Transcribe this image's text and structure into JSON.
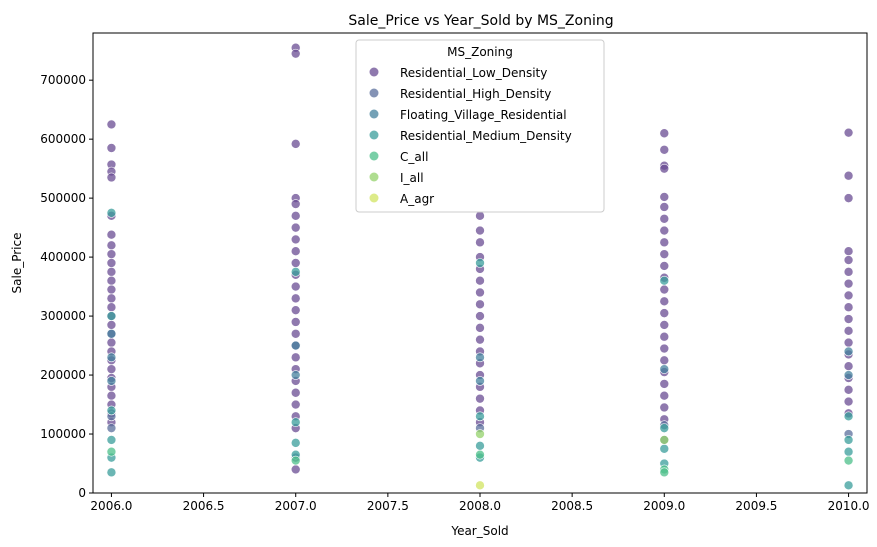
{
  "chart_data": {
    "type": "scatter",
    "title": "Sale_Price vs Year_Sold by MS_Zoning",
    "xlabel": "Year_Sold",
    "ylabel": "Sale_Price",
    "xlim": [
      2005.9,
      2010.1
    ],
    "ylim": [
      0,
      780000
    ],
    "xticks": [
      "2006.0",
      "2006.5",
      "2007.0",
      "2007.5",
      "2008.0",
      "2008.5",
      "2009.0",
      "2009.5",
      "2010.0"
    ],
    "yticks": [
      "0",
      "100000",
      "200000",
      "300000",
      "400000",
      "500000",
      "600000",
      "700000"
    ],
    "legend": {
      "title": "MS_Zoning",
      "position": "top-center"
    },
    "grid": false,
    "series": [
      {
        "name": "Residential_Low_Density",
        "color": "#6a4c93",
        "points": [
          [
            2006,
            625000
          ],
          [
            2006,
            585000
          ],
          [
            2006,
            557000
          ],
          [
            2006,
            545000
          ],
          [
            2006,
            535000
          ],
          [
            2006,
            470000
          ],
          [
            2006,
            438000
          ],
          [
            2006,
            420000
          ],
          [
            2006,
            405000
          ],
          [
            2006,
            390000
          ],
          [
            2006,
            375000
          ],
          [
            2006,
            360000
          ],
          [
            2006,
            345000
          ],
          [
            2006,
            330000
          ],
          [
            2006,
            315000
          ],
          [
            2006,
            300000
          ],
          [
            2006,
            285000
          ],
          [
            2006,
            270000
          ],
          [
            2006,
            255000
          ],
          [
            2006,
            240000
          ],
          [
            2006,
            225000
          ],
          [
            2006,
            210000
          ],
          [
            2006,
            195000
          ],
          [
            2006,
            180000
          ],
          [
            2006,
            165000
          ],
          [
            2006,
            150000
          ],
          [
            2006,
            135000
          ],
          [
            2006,
            120000
          ],
          [
            2007,
            755000
          ],
          [
            2007,
            745000
          ],
          [
            2007,
            592000
          ],
          [
            2007,
            500000
          ],
          [
            2007,
            490000
          ],
          [
            2007,
            470000
          ],
          [
            2007,
            450000
          ],
          [
            2007,
            430000
          ],
          [
            2007,
            410000
          ],
          [
            2007,
            390000
          ],
          [
            2007,
            370000
          ],
          [
            2007,
            350000
          ],
          [
            2007,
            330000
          ],
          [
            2007,
            310000
          ],
          [
            2007,
            290000
          ],
          [
            2007,
            270000
          ],
          [
            2007,
            250000
          ],
          [
            2007,
            230000
          ],
          [
            2007,
            210000
          ],
          [
            2007,
            190000
          ],
          [
            2007,
            170000
          ],
          [
            2007,
            150000
          ],
          [
            2007,
            130000
          ],
          [
            2007,
            110000
          ],
          [
            2007,
            40000
          ],
          [
            2008,
            470000
          ],
          [
            2008,
            445000
          ],
          [
            2008,
            425000
          ],
          [
            2008,
            400000
          ],
          [
            2008,
            380000
          ],
          [
            2008,
            360000
          ],
          [
            2008,
            340000
          ],
          [
            2008,
            320000
          ],
          [
            2008,
            300000
          ],
          [
            2008,
            280000
          ],
          [
            2008,
            260000
          ],
          [
            2008,
            240000
          ],
          [
            2008,
            220000
          ],
          [
            2008,
            200000
          ],
          [
            2008,
            180000
          ],
          [
            2008,
            160000
          ],
          [
            2008,
            140000
          ],
          [
            2008,
            120000
          ],
          [
            2009,
            610000
          ],
          [
            2009,
            582000
          ],
          [
            2009,
            555000
          ],
          [
            2009,
            550000
          ],
          [
            2009,
            502000
          ],
          [
            2009,
            485000
          ],
          [
            2009,
            465000
          ],
          [
            2009,
            445000
          ],
          [
            2009,
            425000
          ],
          [
            2009,
            405000
          ],
          [
            2009,
            385000
          ],
          [
            2009,
            365000
          ],
          [
            2009,
            345000
          ],
          [
            2009,
            325000
          ],
          [
            2009,
            305000
          ],
          [
            2009,
            285000
          ],
          [
            2009,
            265000
          ],
          [
            2009,
            245000
          ],
          [
            2009,
            225000
          ],
          [
            2009,
            205000
          ],
          [
            2009,
            185000
          ],
          [
            2009,
            165000
          ],
          [
            2009,
            145000
          ],
          [
            2009,
            125000
          ],
          [
            2010,
            611000
          ],
          [
            2010,
            538000
          ],
          [
            2010,
            500000
          ],
          [
            2010,
            410000
          ],
          [
            2010,
            395000
          ],
          [
            2010,
            375000
          ],
          [
            2010,
            355000
          ],
          [
            2010,
            335000
          ],
          [
            2010,
            315000
          ],
          [
            2010,
            295000
          ],
          [
            2010,
            275000
          ],
          [
            2010,
            255000
          ],
          [
            2010,
            235000
          ],
          [
            2010,
            215000
          ],
          [
            2010,
            195000
          ],
          [
            2010,
            175000
          ],
          [
            2010,
            155000
          ],
          [
            2010,
            135000
          ]
        ]
      },
      {
        "name": "Residential_High_Density",
        "color": "#5b6f9c",
        "points": [
          [
            2006,
            130000
          ],
          [
            2006,
            110000
          ],
          [
            2007,
            60000
          ],
          [
            2008,
            110000
          ],
          [
            2009,
            115000
          ],
          [
            2009,
            90000
          ],
          [
            2010,
            100000
          ]
        ]
      },
      {
        "name": "Floating_Village_Residential",
        "color": "#45829e",
        "points": [
          [
            2006,
            270000
          ],
          [
            2006,
            230000
          ],
          [
            2006,
            190000
          ],
          [
            2007,
            250000
          ],
          [
            2007,
            200000
          ],
          [
            2008,
            230000
          ],
          [
            2008,
            190000
          ],
          [
            2009,
            210000
          ],
          [
            2010,
            240000
          ],
          [
            2010,
            200000
          ]
        ]
      },
      {
        "name": "Residential_Medium_Density",
        "color": "#3a9e9b",
        "points": [
          [
            2006,
            475000
          ],
          [
            2006,
            300000
          ],
          [
            2006,
            140000
          ],
          [
            2006,
            90000
          ],
          [
            2006,
            60000
          ],
          [
            2006,
            35000
          ],
          [
            2007,
            375000
          ],
          [
            2007,
            120000
          ],
          [
            2007,
            85000
          ],
          [
            2007,
            65000
          ],
          [
            2008,
            390000
          ],
          [
            2008,
            130000
          ],
          [
            2008,
            80000
          ],
          [
            2008,
            60000
          ],
          [
            2009,
            360000
          ],
          [
            2009,
            110000
          ],
          [
            2009,
            75000
          ],
          [
            2009,
            50000
          ],
          [
            2010,
            130000
          ],
          [
            2010,
            90000
          ],
          [
            2010,
            70000
          ],
          [
            2010,
            13000
          ]
        ]
      },
      {
        "name": "C_all",
        "color": "#4cbf8a",
        "points": [
          [
            2006,
            70000
          ],
          [
            2007,
            55000
          ],
          [
            2008,
            65000
          ],
          [
            2009,
            40000
          ],
          [
            2009,
            35000
          ],
          [
            2010,
            55000
          ]
        ]
      },
      {
        "name": "I_all",
        "color": "#94d26b",
        "points": [
          [
            2008,
            100000
          ],
          [
            2009,
            90000
          ]
        ]
      },
      {
        "name": "A_agr",
        "color": "#d2e462",
        "points": [
          [
            2008,
            13000
          ]
        ]
      }
    ]
  }
}
